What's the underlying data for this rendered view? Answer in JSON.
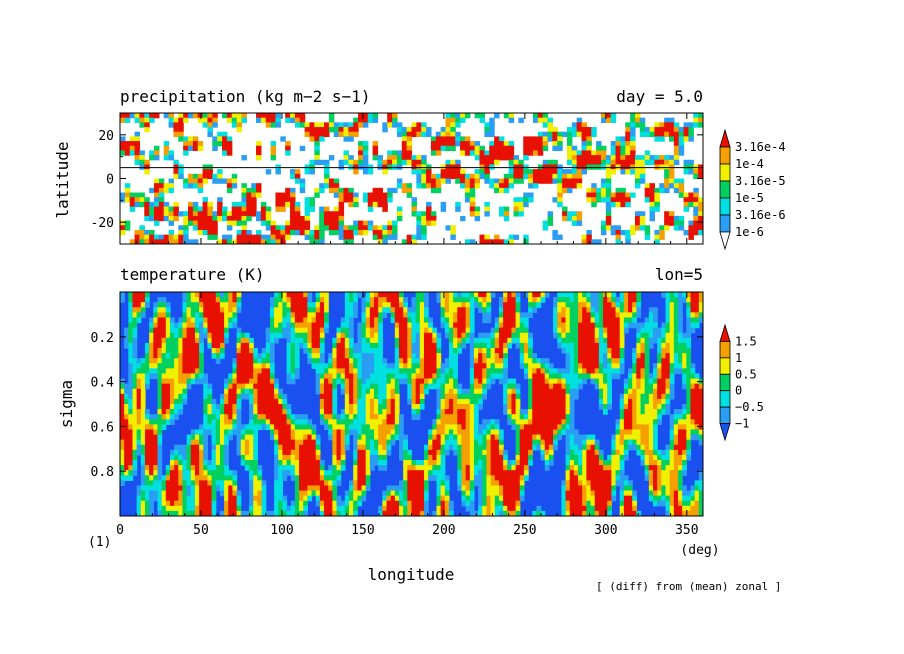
{
  "chart_data": [
    {
      "type": "heatmap",
      "title": "precipitation (kg m−2 s−1)",
      "annotation": "day = 5.0",
      "ylabel": "latitude",
      "xlim": [
        0,
        360
      ],
      "ylim": [
        -30,
        30
      ],
      "yticks": [
        20,
        0,
        -20
      ],
      "reference_line_latitude": 5,
      "colorbar": {
        "labels": [
          "3.16e-4",
          "1e-4",
          "3.16e-5",
          "1e-5",
          "3.16e-6",
          "1e-6"
        ],
        "colors": [
          "#ffffff",
          "#2a9df4",
          "#00e0e0",
          "#00d060",
          "#f0f000",
          "#f5a000",
          "#e81000"
        ]
      },
      "scale": "log"
    },
    {
      "type": "heatmap",
      "title": "temperature (K)",
      "annotation": "lon=5",
      "ylabel": "sigma",
      "xlabel": "longitude",
      "xunit": "(deg)",
      "xlim": [
        0,
        360
      ],
      "ylim": [
        1.0,
        0.0
      ],
      "xticks": [
        "0",
        "50",
        "100",
        "150",
        "200",
        "250",
        "300",
        "350"
      ],
      "yticks": [
        "0.2",
        "0.4",
        "0.6",
        "0.8"
      ],
      "colorbar": {
        "labels": [
          "1.5",
          "1",
          "0.5",
          "0",
          "−0.5",
          "−1"
        ],
        "colors": [
          "#1a50f0",
          "#2a9df4",
          "#00e0e0",
          "#00d060",
          "#f0f000",
          "#f5a000",
          "#e81000"
        ]
      }
    }
  ],
  "footer": {
    "frame_label": "(1)",
    "note": "[ (diff) from (mean) zonal ]"
  }
}
